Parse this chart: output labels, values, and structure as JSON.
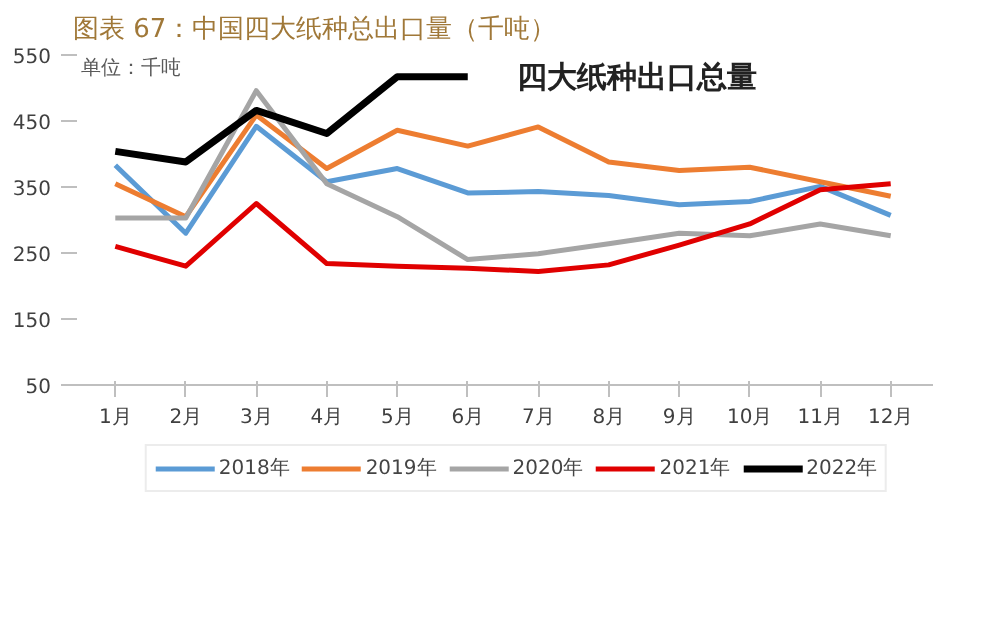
{
  "chart_data": {
    "type": "line",
    "title": "图表 67：中国四大纸种总出口量（千吨）",
    "subtitle": "四大纸种出口总量",
    "annotations": [
      "单位：千吨"
    ],
    "categories": [
      "1月",
      "2月",
      "3月",
      "4月",
      "5月",
      "6月",
      "7月",
      "8月",
      "9月",
      "10月",
      "11月",
      "12月"
    ],
    "series": [
      {
        "name": "2018年",
        "color": "#5b9bd5",
        "values": [
          383,
          280,
          442,
          358,
          378,
          341,
          343,
          337,
          323,
          328,
          351,
          307
        ]
      },
      {
        "name": "2019年",
        "color": "#ed7d31",
        "values": [
          355,
          305,
          459,
          378,
          436,
          412,
          441,
          388,
          375,
          380,
          358,
          336
        ]
      },
      {
        "name": "2020年",
        "color": "#a5a5a5",
        "values": [
          303,
          303,
          496,
          355,
          305,
          240,
          249,
          264,
          280,
          276,
          294,
          276
        ]
      },
      {
        "name": "2021年",
        "color": "#e00000",
        "values": [
          260,
          230,
          325,
          234,
          230,
          227,
          222,
          232,
          262,
          294,
          346,
          355
        ]
      },
      {
        "name": "2022年",
        "color": "#000000",
        "values": [
          404,
          388,
          466,
          431,
          517,
          517,
          null,
          null,
          null,
          null,
          null,
          null
        ]
      }
    ],
    "ylim": [
      50,
      550
    ],
    "yticks": [
      50,
      150,
      250,
      350,
      450,
      550
    ],
    "grid": false,
    "legend": "bottom",
    "marker": "none",
    "line_style": "solid"
  }
}
